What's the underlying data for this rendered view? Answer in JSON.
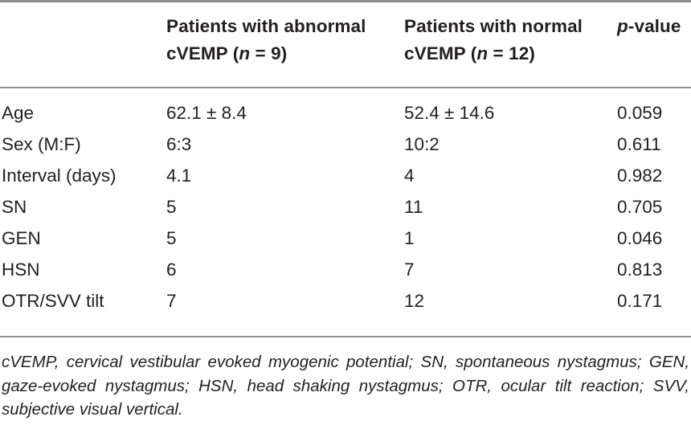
{
  "header": {
    "abnormal_l1": "Patients with abnormal",
    "abnormal_pre": "cVEMP (",
    "abnormal_n": "n",
    "abnormal_post": " = 9)",
    "normal_l1": "Patients with normal",
    "normal_pre": "cVEMP (",
    "normal_n": "n",
    "normal_post": " = 12)",
    "p_italic": "p",
    "p_rest": "-value"
  },
  "rows": [
    {
      "label": "Age",
      "abnormal": "62.1 ± 8.4",
      "normal": "52.4 ± 14.6",
      "p": "0.059"
    },
    {
      "label": "Sex (M:F)",
      "abnormal": "6:3",
      "normal": "10:2",
      "p": "0.611"
    },
    {
      "label": "Interval (days)",
      "abnormal": "4.1",
      "normal": "4",
      "p": "0.982"
    },
    {
      "label": "SN",
      "abnormal": "5",
      "normal": "11",
      "p": "0.705"
    },
    {
      "label": "GEN",
      "abnormal": "5",
      "normal": "1",
      "p": "0.046"
    },
    {
      "label": "HSN",
      "abnormal": "6",
      "normal": "7",
      "p": "0.813"
    },
    {
      "label": "OTR/SVV tilt",
      "abnormal": "7",
      "normal": "12",
      "p": "0.171"
    }
  ],
  "footnote": "cVEMP, cervical vestibular evoked myogenic potential; SN, spontaneous nystagmus; GEN, gaze-evoked nystagmus; HSN, head shaking nystagmus; OTR, ocular tilt reaction; SVV, subjective visual vertical."
}
